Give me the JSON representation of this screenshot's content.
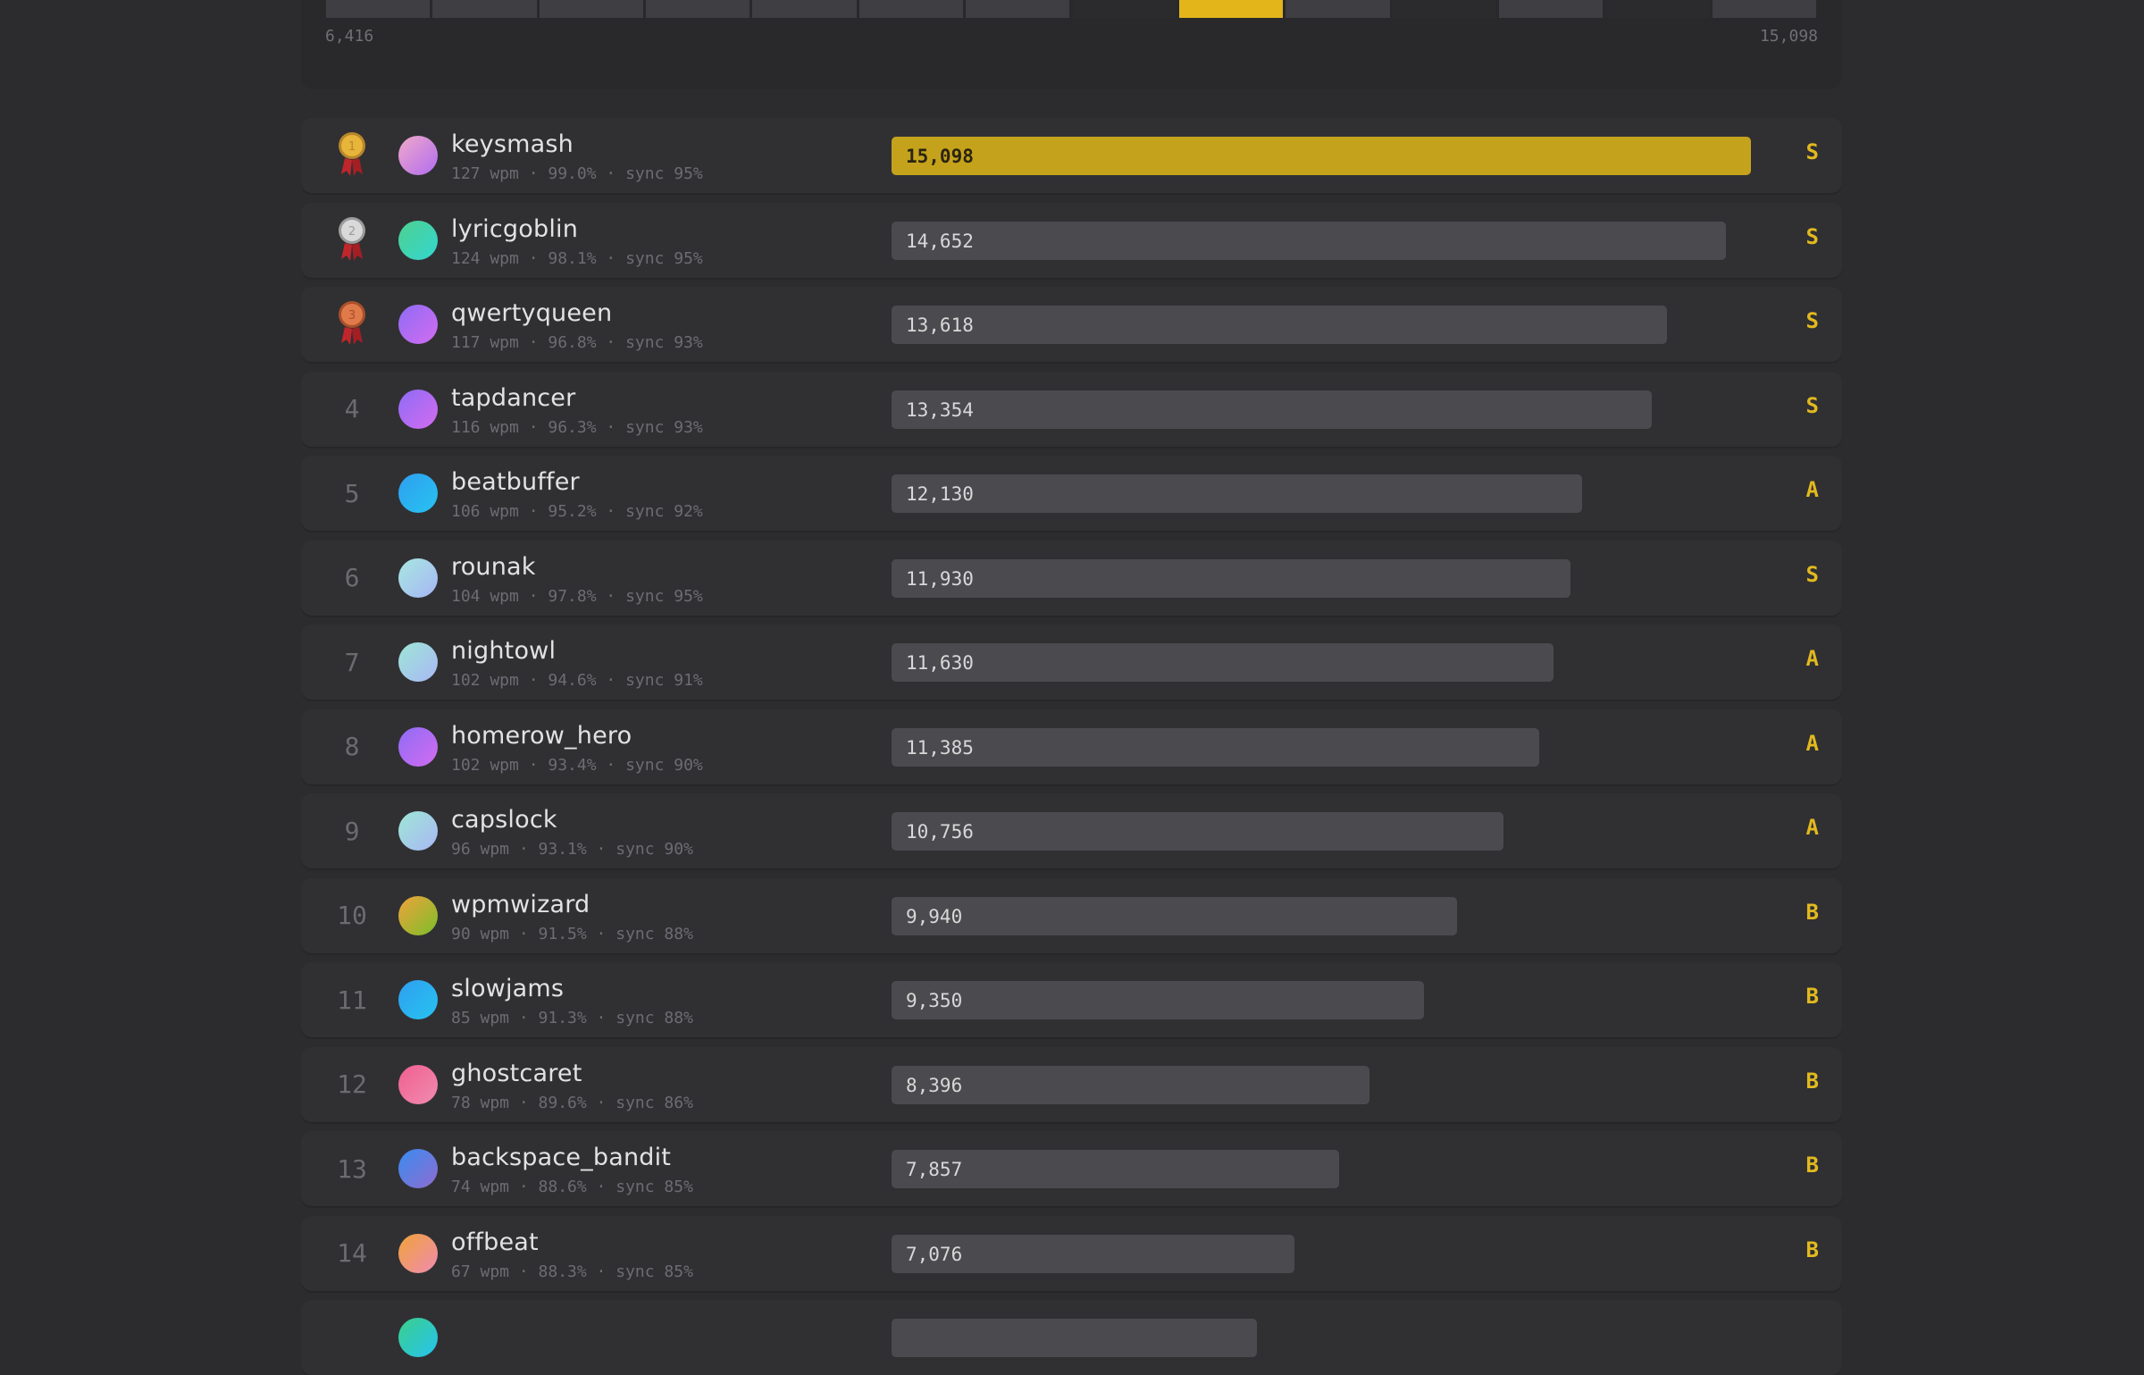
{
  "histogram": {
    "min_label": "6,416",
    "max_label": "15,098",
    "bins": [
      {
        "state": "filled"
      },
      {
        "state": "filled"
      },
      {
        "state": "filled"
      },
      {
        "state": "filled"
      },
      {
        "state": "filled"
      },
      {
        "state": "filled"
      },
      {
        "state": "filled"
      },
      {
        "state": "empty"
      },
      {
        "state": "highlight"
      },
      {
        "state": "filled"
      },
      {
        "state": "empty"
      },
      {
        "state": "filled"
      },
      {
        "state": "empty"
      },
      {
        "state": "filled"
      }
    ],
    "colors": {
      "filled": "#3f3f43",
      "empty": "#2b2b2e",
      "highlight": "#e4b51a"
    }
  },
  "max_score": 15098,
  "colors": {
    "grade": "#e2b91e",
    "first_bar": "#c5a21c",
    "bar": "#4b4b4f"
  },
  "rows": [
    {
      "rank": "1",
      "medal": "gold",
      "name": "keysmash",
      "stats": "127 wpm · 99.0% · sync 95%",
      "score_label": "15,098",
      "score": 15098,
      "grade": "S",
      "avatar": [
        "#f0a9c9",
        "#b26cf0"
      ]
    },
    {
      "rank": "2",
      "medal": "silver",
      "name": "lyricgoblin",
      "stats": "124 wpm · 98.1% · sync 95%",
      "score_label": "14,652",
      "score": 14652,
      "grade": "S",
      "avatar": [
        "#4fd18f",
        "#33d6d0"
      ]
    },
    {
      "rank": "3",
      "medal": "bronze",
      "name": "qwertyqueen",
      "stats": "117 wpm · 96.8% · sync 93%",
      "score_label": "13,618",
      "score": 13618,
      "grade": "S",
      "avatar": [
        "#8e6cf5",
        "#d36cf0"
      ]
    },
    {
      "rank": "4",
      "medal": "",
      "name": "tapdancer",
      "stats": "116 wpm · 96.3% · sync 93%",
      "score_label": "13,354",
      "score": 13354,
      "grade": "S",
      "avatar": [
        "#8e6cf5",
        "#d36cf0"
      ]
    },
    {
      "rank": "5",
      "medal": "",
      "name": "beatbuffer",
      "stats": "106 wpm · 95.2% · sync 92%",
      "score_label": "12,130",
      "score": 12130,
      "grade": "A",
      "avatar": [
        "#2f9ff0",
        "#27c3f0"
      ]
    },
    {
      "rank": "6",
      "medal": "",
      "name": "rounak",
      "stats": "104 wpm · 97.8% · sync 95%",
      "score_label": "11,930",
      "score": 11930,
      "grade": "S",
      "avatar": [
        "#a7e8e0",
        "#a7b5f5"
      ]
    },
    {
      "rank": "7",
      "medal": "",
      "name": "nightowl",
      "stats": "102 wpm · 94.6% · sync 91%",
      "score_label": "11,630",
      "score": 11630,
      "grade": "A",
      "avatar": [
        "#9ee6d6",
        "#a9b8f5"
      ]
    },
    {
      "rank": "8",
      "medal": "",
      "name": "homerow_hero",
      "stats": "102 wpm · 93.4% · sync 90%",
      "score_label": "11,385",
      "score": 11385,
      "grade": "A",
      "avatar": [
        "#8e6cf5",
        "#d36cf0"
      ]
    },
    {
      "rank": "9",
      "medal": "",
      "name": "capslock",
      "stats": "96 wpm · 93.1% · sync 90%",
      "score_label": "10,756",
      "score": 10756,
      "grade": "A",
      "avatar": [
        "#9ee6d6",
        "#a9b8f5"
      ]
    },
    {
      "rank": "10",
      "medal": "",
      "name": "wpmwizard",
      "stats": "90 wpm · 91.5% · sync 88%",
      "score_label": "9,940",
      "score": 9940,
      "grade": "B",
      "avatar": [
        "#f0a23a",
        "#7bbf2a"
      ]
    },
    {
      "rank": "11",
      "medal": "",
      "name": "slowjams",
      "stats": "85 wpm · 91.3% · sync 88%",
      "score_label": "9,350",
      "score": 9350,
      "grade": "B",
      "avatar": [
        "#2f9ff0",
        "#27c3f0"
      ]
    },
    {
      "rank": "12",
      "medal": "",
      "name": "ghostcaret",
      "stats": "78 wpm · 89.6% · sync 86%",
      "score_label": "8,396",
      "score": 8396,
      "grade": "B",
      "avatar": [
        "#f0608f",
        "#f08bb0"
      ]
    },
    {
      "rank": "13",
      "medal": "",
      "name": "backspace_bandit",
      "stats": "74 wpm · 88.6% · sync 85%",
      "score_label": "7,857",
      "score": 7857,
      "grade": "B",
      "avatar": [
        "#3a8cf0",
        "#8e6cd0"
      ]
    },
    {
      "rank": "14",
      "medal": "",
      "name": "offbeat",
      "stats": "67 wpm · 88.3% · sync 85%",
      "score_label": "7,076",
      "score": 7076,
      "grade": "B",
      "avatar": [
        "#f0a23a",
        "#f08bb0"
      ]
    },
    {
      "rank": "",
      "medal": "",
      "name": "",
      "stats": "",
      "score_label": "",
      "score": 6416,
      "grade": "",
      "avatar": [
        "#3ad08a",
        "#27c3f0"
      ]
    }
  ]
}
